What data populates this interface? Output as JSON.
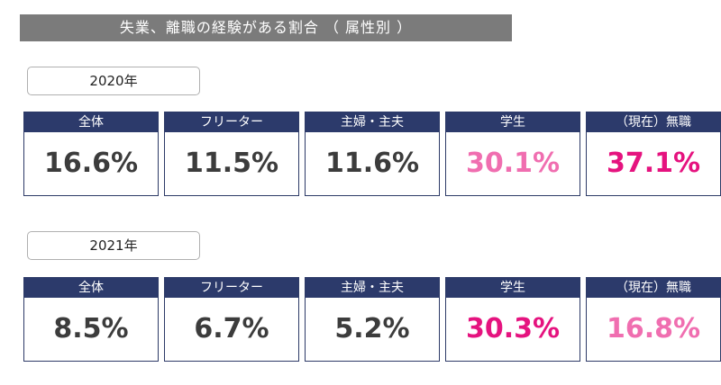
{
  "title": "失業、離職の経験がある割合 （ 属性別 ）",
  "colors": {
    "dark": "#3c3c3c",
    "pink_light": "#f06eb0",
    "pink_strong": "#e5137f",
    "header": "#2c3a6b"
  },
  "sections": [
    {
      "year": "2020年",
      "cards": [
        {
          "label": "全体",
          "value": "16.6%",
          "color": "#3c3c3c"
        },
        {
          "label": "フリーター",
          "value": "11.5%",
          "color": "#3c3c3c"
        },
        {
          "label": "主婦・主夫",
          "value": "11.6%",
          "color": "#3c3c3c"
        },
        {
          "label": "学生",
          "value": "30.1%",
          "color": "#f06eb0"
        },
        {
          "label": "（現在）無職",
          "value": "37.1%",
          "color": "#e5137f"
        }
      ]
    },
    {
      "year": "2021年",
      "cards": [
        {
          "label": "全体",
          "value": "8.5%",
          "color": "#3c3c3c"
        },
        {
          "label": "フリーター",
          "value": "6.7%",
          "color": "#3c3c3c"
        },
        {
          "label": "主婦・主夫",
          "value": "5.2%",
          "color": "#3c3c3c"
        },
        {
          "label": "学生",
          "value": "30.3%",
          "color": "#e5137f"
        },
        {
          "label": "（現在）無職",
          "value": "16.8%",
          "color": "#f06eb0"
        }
      ]
    }
  ]
}
